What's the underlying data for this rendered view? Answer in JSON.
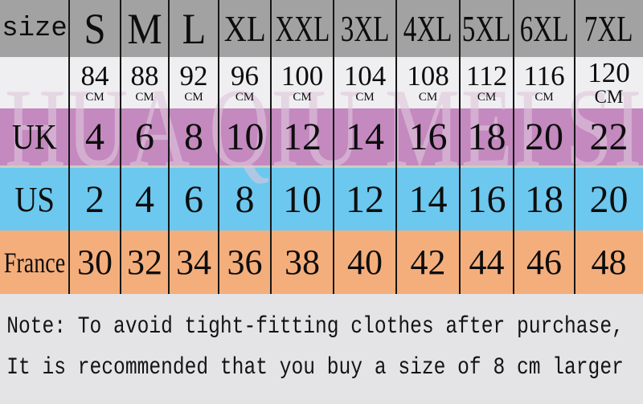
{
  "chart_data": {
    "type": "table",
    "title": "clothing size conversion chart",
    "corner_label": "size",
    "columns": [
      "size",
      "S",
      "M",
      "L",
      "XL",
      "XXL",
      "3XL",
      "4XL",
      "5XL",
      "6XL",
      "7XL"
    ],
    "size_labels": [
      "S",
      "M",
      "L",
      "XL",
      "XXL",
      "3XL",
      "4XL",
      "5XL",
      "6XL",
      "7XL"
    ],
    "bust_cm": [
      "84",
      "88",
      "92",
      "96",
      "100",
      "104",
      "108",
      "112",
      "116",
      "120"
    ],
    "bust_unit": "CM",
    "uk": {
      "label": "UK",
      "values": [
        "4",
        "6",
        "8",
        "10",
        "12",
        "14",
        "16",
        "18",
        "20",
        "22"
      ]
    },
    "us": {
      "label": "US",
      "values": [
        "2",
        "4",
        "6",
        "8",
        "10",
        "12",
        "14",
        "16",
        "18",
        "20"
      ]
    },
    "france": {
      "label": "France",
      "values": [
        "30",
        "32",
        "34",
        "36",
        "38",
        "40",
        "42",
        "44",
        "46",
        "48"
      ]
    }
  },
  "watermark": "HUA QIU MEI SI",
  "note": {
    "line1": "Note: To avoid tight-fitting clothes after purchase,",
    "line2": "It is recommended that you buy a size of 8 cm larger"
  },
  "colors": {
    "header_bg": "#a2a2a2",
    "bust_bg": "#efeef0",
    "uk_bg": "#c489bf",
    "us_bg": "#6cc8ee",
    "france_bg": "#f4ae7c",
    "note_bg": "#e4e3e5",
    "divider": "#161616",
    "text": "#0d0d0d",
    "watermark": "#dec6dc"
  }
}
